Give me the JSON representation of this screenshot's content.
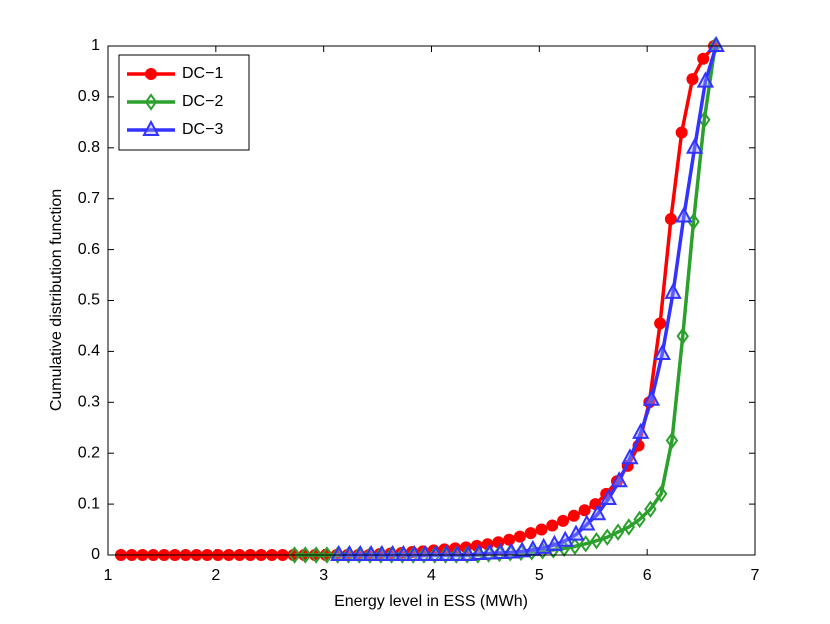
{
  "chart_data": {
    "type": "line",
    "xlabel": "Energy level in ESS (MWh)",
    "ylabel": "Cumulative distribution function",
    "xlim": [
      1,
      7
    ],
    "xticks": [
      1,
      2,
      3,
      4,
      5,
      6,
      7
    ],
    "ylim": [
      0,
      1
    ],
    "yticks": [
      0,
      0.1,
      0.2,
      0.3,
      0.4,
      0.5,
      0.6,
      0.7,
      0.8,
      0.9,
      1
    ],
    "legend": "upper left",
    "series": [
      {
        "name": "DC−1",
        "color": "#ff0000",
        "marker": "circle",
        "x": [
          1.12,
          1.22,
          1.32,
          1.42,
          1.52,
          1.62,
          1.72,
          1.82,
          1.92,
          2.02,
          2.12,
          2.22,
          2.32,
          2.42,
          2.52,
          2.62,
          2.72,
          2.82,
          2.92,
          3.02,
          3.12,
          3.22,
          3.32,
          3.42,
          3.52,
          3.62,
          3.72,
          3.82,
          3.92,
          4.02,
          4.12,
          4.22,
          4.32,
          4.42,
          4.52,
          4.62,
          4.72,
          4.82,
          4.92,
          5.02,
          5.12,
          5.22,
          5.32,
          5.42,
          5.52,
          5.62,
          5.72,
          5.82,
          5.92,
          6.02,
          6.12,
          6.22,
          6.32,
          6.42,
          6.52,
          6.62
        ],
        "values": [
          0,
          0,
          0,
          0,
          0,
          0,
          0,
          0,
          0,
          0,
          0,
          0,
          0,
          0,
          0,
          0,
          0,
          0,
          0,
          0,
          0,
          0,
          0,
          0,
          0.002,
          0.003,
          0.004,
          0.006,
          0.007,
          0.009,
          0.011,
          0.013,
          0.015,
          0.018,
          0.021,
          0.025,
          0.03,
          0.036,
          0.043,
          0.05,
          0.058,
          0.067,
          0.077,
          0.088,
          0.1,
          0.12,
          0.145,
          0.175,
          0.215,
          0.3,
          0.455,
          0.66,
          0.83,
          0.935,
          0.975,
          1
        ]
      },
      {
        "name": "DC−2",
        "color": "#2ca02c",
        "marker": "diamond",
        "x": [
          2.73,
          2.83,
          2.93,
          3.03,
          3.13,
          3.23,
          3.33,
          3.43,
          3.53,
          3.63,
          3.73,
          3.83,
          3.93,
          4.03,
          4.13,
          4.23,
          4.33,
          4.43,
          4.53,
          4.63,
          4.73,
          4.83,
          4.93,
          5.03,
          5.13,
          5.23,
          5.33,
          5.43,
          5.53,
          5.63,
          5.73,
          5.83,
          5.93,
          6.03,
          6.13,
          6.23,
          6.33,
          6.43,
          6.53,
          6.63
        ],
        "values": [
          0,
          0,
          0,
          0,
          0,
          0,
          0,
          0,
          0,
          0,
          0,
          0,
          0,
          0,
          0,
          0,
          0,
          0,
          0.002,
          0.003,
          0.004,
          0.005,
          0.006,
          0.008,
          0.01,
          0.013,
          0.017,
          0.022,
          0.028,
          0.035,
          0.045,
          0.055,
          0.07,
          0.09,
          0.12,
          0.225,
          0.43,
          0.655,
          0.855,
          1
        ]
      },
      {
        "name": "DC−3",
        "color": "#3333ff",
        "marker": "triangle",
        "x": [
          3.14,
          3.24,
          3.34,
          3.44,
          3.54,
          3.64,
          3.74,
          3.84,
          3.94,
          4.04,
          4.14,
          4.24,
          4.34,
          4.44,
          4.54,
          4.64,
          4.74,
          4.84,
          4.94,
          5.04,
          5.14,
          5.24,
          5.34,
          5.44,
          5.54,
          5.64,
          5.74,
          5.84,
          5.94,
          6.04,
          6.14,
          6.24,
          6.34,
          6.44,
          6.54,
          6.64
        ],
        "values": [
          0,
          0,
          0,
          0,
          0,
          0,
          0,
          0,
          0,
          0,
          0,
          0,
          0,
          0.002,
          0.003,
          0.004,
          0.005,
          0.007,
          0.01,
          0.014,
          0.02,
          0.028,
          0.04,
          0.06,
          0.08,
          0.11,
          0.145,
          0.19,
          0.24,
          0.305,
          0.395,
          0.515,
          0.665,
          0.8,
          0.93,
          1
        ]
      }
    ]
  }
}
